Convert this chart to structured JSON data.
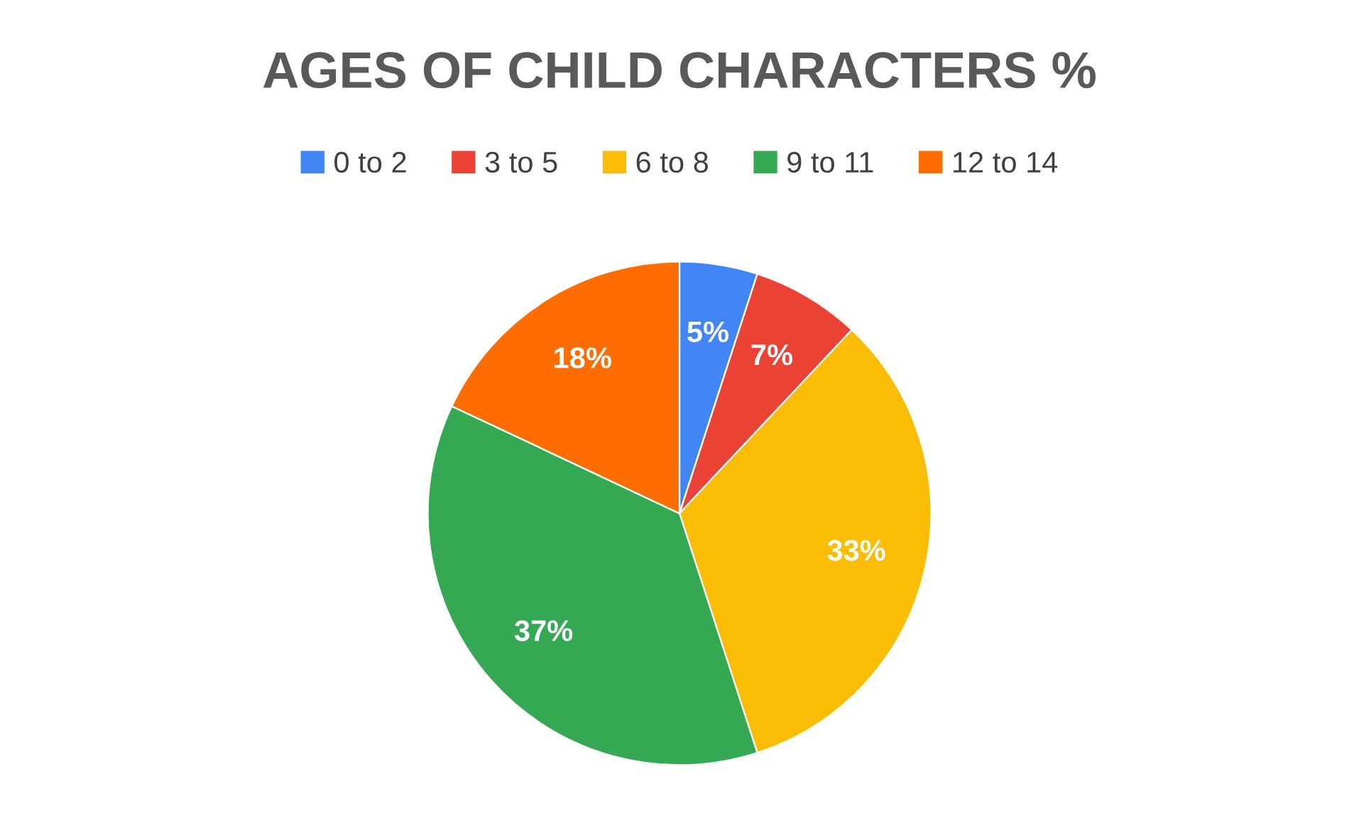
{
  "chart_data": {
    "type": "pie",
    "title": "AGES OF CHILD CHARACTERS %",
    "categories": [
      "0 to 2",
      "3 to 5",
      "6 to 8",
      "9 to 11",
      "12 to 14"
    ],
    "values": [
      5,
      7,
      33,
      37,
      18
    ],
    "colors": [
      "#4285f4",
      "#ea4335",
      "#fbbc04",
      "#34a853",
      "#ff6d01"
    ],
    "value_labels": [
      "5%",
      "7%",
      "33%",
      "37%",
      "18%"
    ],
    "legend": "top"
  }
}
